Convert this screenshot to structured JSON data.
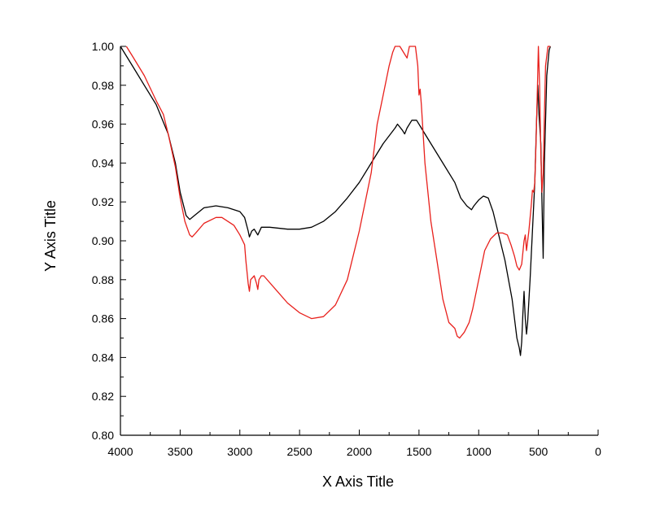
{
  "chart_data": {
    "type": "line",
    "xlabel": "X Axis Title",
    "ylabel": "Y Axis Title",
    "xlim": [
      4000,
      0
    ],
    "ylim": [
      0.8,
      1.0
    ],
    "x_reversed": true,
    "x_ticks": [
      4000,
      3500,
      3000,
      2500,
      2000,
      1500,
      1000,
      500,
      0
    ],
    "x_tick_labels": [
      "4000",
      "3500",
      "3000",
      "2500",
      "2000",
      "1500",
      "1000",
      "500",
      "0"
    ],
    "y_ticks": [
      0.8,
      0.82,
      0.84,
      0.86,
      0.88,
      0.9,
      0.92,
      0.94,
      0.96,
      0.98,
      1.0
    ],
    "y_tick_labels": [
      "0.80",
      "0.82",
      "0.84",
      "0.86",
      "0.88",
      "0.90",
      "0.92",
      "0.94",
      "0.96",
      "0.98",
      "1.00"
    ],
    "grid": false,
    "series": [
      {
        "color": "#000000",
        "points": [
          [
            4000,
            1.0
          ],
          [
            3900,
            0.99
          ],
          [
            3800,
            0.98
          ],
          [
            3700,
            0.97
          ],
          [
            3600,
            0.955
          ],
          [
            3540,
            0.94
          ],
          [
            3500,
            0.925
          ],
          [
            3450,
            0.913
          ],
          [
            3420,
            0.911
          ],
          [
            3380,
            0.913
          ],
          [
            3300,
            0.917
          ],
          [
            3200,
            0.918
          ],
          [
            3100,
            0.917
          ],
          [
            3000,
            0.915
          ],
          [
            2960,
            0.912
          ],
          [
            2930,
            0.905
          ],
          [
            2920,
            0.902
          ],
          [
            2900,
            0.905
          ],
          [
            2880,
            0.906
          ],
          [
            2860,
            0.904
          ],
          [
            2850,
            0.903
          ],
          [
            2820,
            0.907
          ],
          [
            2750,
            0.907
          ],
          [
            2600,
            0.906
          ],
          [
            2500,
            0.906
          ],
          [
            2400,
            0.907
          ],
          [
            2300,
            0.91
          ],
          [
            2200,
            0.915
          ],
          [
            2100,
            0.922
          ],
          [
            2000,
            0.93
          ],
          [
            1900,
            0.94
          ],
          [
            1800,
            0.95
          ],
          [
            1700,
            0.958
          ],
          [
            1680,
            0.96
          ],
          [
            1640,
            0.957
          ],
          [
            1620,
            0.955
          ],
          [
            1600,
            0.958
          ],
          [
            1560,
            0.962
          ],
          [
            1520,
            0.962
          ],
          [
            1480,
            0.958
          ],
          [
            1450,
            0.955
          ],
          [
            1400,
            0.95
          ],
          [
            1300,
            0.94
          ],
          [
            1200,
            0.93
          ],
          [
            1150,
            0.922
          ],
          [
            1100,
            0.918
          ],
          [
            1060,
            0.916
          ],
          [
            1040,
            0.918
          ],
          [
            1000,
            0.921
          ],
          [
            960,
            0.923
          ],
          [
            920,
            0.922
          ],
          [
            880,
            0.915
          ],
          [
            840,
            0.905
          ],
          [
            780,
            0.89
          ],
          [
            720,
            0.87
          ],
          [
            680,
            0.85
          ],
          [
            660,
            0.845
          ],
          [
            650,
            0.841
          ],
          [
            640,
            0.848
          ],
          [
            630,
            0.862
          ],
          [
            620,
            0.874
          ],
          [
            610,
            0.86
          ],
          [
            600,
            0.852
          ],
          [
            590,
            0.858
          ],
          [
            570,
            0.88
          ],
          [
            550,
            0.905
          ],
          [
            530,
            0.93
          ],
          [
            515,
            0.962
          ],
          [
            505,
            0.98
          ],
          [
            495,
            0.965
          ],
          [
            480,
            0.95
          ],
          [
            470,
            0.92
          ],
          [
            460,
            0.891
          ],
          [
            450,
            0.94
          ],
          [
            430,
            0.985
          ],
          [
            410,
            0.998
          ],
          [
            400,
            1.0
          ]
        ]
      },
      {
        "color": "#e8201c",
        "points": [
          [
            3950,
            1.0
          ],
          [
            3900,
            0.995
          ],
          [
            3800,
            0.985
          ],
          [
            3700,
            0.972
          ],
          [
            3640,
            0.965
          ],
          [
            3600,
            0.955
          ],
          [
            3540,
            0.938
          ],
          [
            3500,
            0.922
          ],
          [
            3460,
            0.91
          ],
          [
            3420,
            0.903
          ],
          [
            3400,
            0.902
          ],
          [
            3370,
            0.904
          ],
          [
            3300,
            0.909
          ],
          [
            3200,
            0.912
          ],
          [
            3150,
            0.912
          ],
          [
            3050,
            0.908
          ],
          [
            3000,
            0.903
          ],
          [
            2960,
            0.898
          ],
          [
            2950,
            0.89
          ],
          [
            2930,
            0.878
          ],
          [
            2920,
            0.874
          ],
          [
            2910,
            0.88
          ],
          [
            2880,
            0.882
          ],
          [
            2860,
            0.878
          ],
          [
            2850,
            0.875
          ],
          [
            2840,
            0.88
          ],
          [
            2820,
            0.882
          ],
          [
            2800,
            0.882
          ],
          [
            2700,
            0.875
          ],
          [
            2600,
            0.868
          ],
          [
            2500,
            0.863
          ],
          [
            2400,
            0.86
          ],
          [
            2300,
            0.861
          ],
          [
            2200,
            0.867
          ],
          [
            2100,
            0.88
          ],
          [
            2000,
            0.905
          ],
          [
            1900,
            0.935
          ],
          [
            1850,
            0.96
          ],
          [
            1800,
            0.975
          ],
          [
            1750,
            0.99
          ],
          [
            1720,
            0.997
          ],
          [
            1700,
            1.0
          ],
          [
            1660,
            1.0
          ],
          [
            1620,
            0.996
          ],
          [
            1600,
            0.994
          ],
          [
            1580,
            1.0
          ],
          [
            1530,
            1.0
          ],
          [
            1510,
            0.99
          ],
          [
            1500,
            0.975
          ],
          [
            1490,
            0.978
          ],
          [
            1480,
            0.97
          ],
          [
            1450,
            0.94
          ],
          [
            1400,
            0.91
          ],
          [
            1350,
            0.89
          ],
          [
            1300,
            0.87
          ],
          [
            1250,
            0.858
          ],
          [
            1200,
            0.855
          ],
          [
            1180,
            0.851
          ],
          [
            1160,
            0.85
          ],
          [
            1120,
            0.853
          ],
          [
            1080,
            0.858
          ],
          [
            1050,
            0.865
          ],
          [
            1000,
            0.88
          ],
          [
            950,
            0.895
          ],
          [
            900,
            0.901
          ],
          [
            850,
            0.904
          ],
          [
            800,
            0.904
          ],
          [
            760,
            0.903
          ],
          [
            730,
            0.898
          ],
          [
            700,
            0.892
          ],
          [
            680,
            0.887
          ],
          [
            660,
            0.885
          ],
          [
            640,
            0.888
          ],
          [
            620,
            0.9
          ],
          [
            610,
            0.903
          ],
          [
            600,
            0.895
          ],
          [
            580,
            0.905
          ],
          [
            560,
            0.918
          ],
          [
            550,
            0.926
          ],
          [
            540,
            0.925
          ],
          [
            530,
            0.93
          ],
          [
            520,
            0.95
          ],
          [
            510,
            0.975
          ],
          [
            500,
            1.0
          ],
          [
            490,
            0.98
          ],
          [
            480,
            0.945
          ],
          [
            470,
            0.925
          ],
          [
            460,
            0.935
          ],
          [
            450,
            0.965
          ],
          [
            440,
            0.99
          ],
          [
            420,
            1.0
          ],
          [
            400,
            1.0
          ]
        ]
      }
    ]
  }
}
